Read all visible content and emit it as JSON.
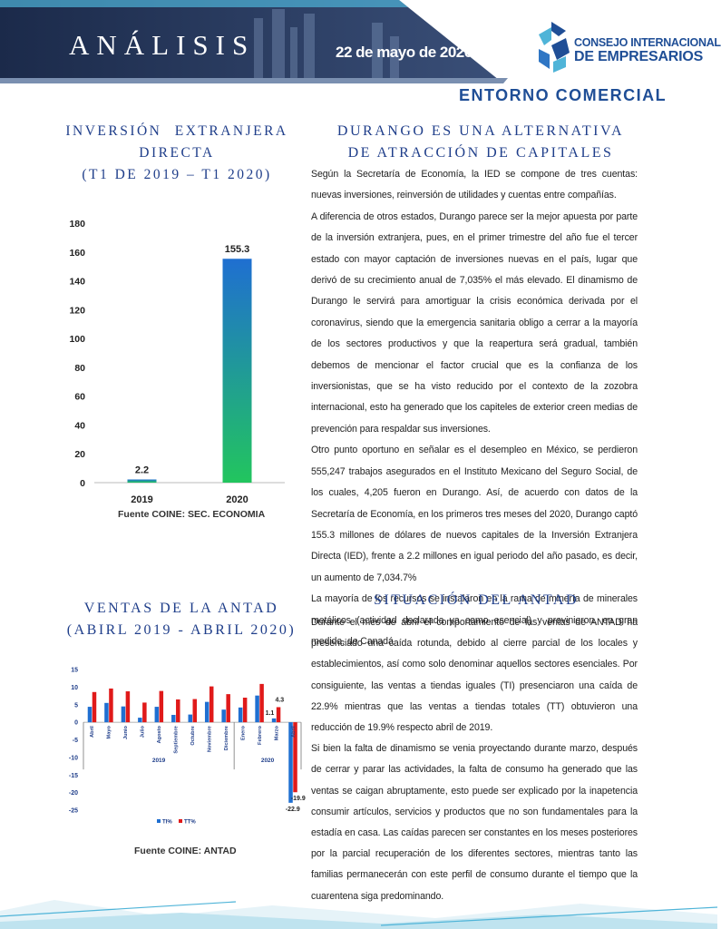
{
  "header": {
    "title": "ANÁLISIS",
    "date": "22 de mayo de 2020",
    "logo_line1": "CONSEJO INTERNACIONAL",
    "logo_line2": "DE EMPRESARIOS",
    "section": "ENTORNO COMERCIAL"
  },
  "left": {
    "ied_heading_1": "INVERSIÓN EXTRANJERA",
    "ied_heading_2": "DIRECTA",
    "ied_heading_3": "(T1 DE 2019 – T1 2020)",
    "ied_source": "Fuente COINE: SEC. ECONOMIA",
    "antad_heading_1": "VENTAS DE LA ANTAD",
    "antad_heading_2": "(ABIRL 2019 - ABRIL 2020)",
    "antad_source": "Fuente COINE: ANTAD"
  },
  "right": {
    "durango_heading_1": "DURANGO ES UNA ALTERNATIVA",
    "durango_heading_2": "DE ATRACCIÓN DE CAPITALES",
    "p1": "Según la Secretaría de Economía, la IED se compone de tres cuentas: nuevas inversiones, reinversión de utilidades y cuentas entre compañías.",
    "p2": "A diferencia de otros estados, Durango parece ser la mejor apuesta por parte de la inversión extranjera, pues, en el primer trimestre del año fue el tercer estado con mayor captación de inversiones nuevas en el país, lugar que derivó de su crecimiento anual de 7,035% el más elevado. El dinamismo de Durango le servirá para amortiguar la crisis económica derivada por el coronavirus, siendo que la emergencia sanitaria obligo a cerrar a la mayoría de los sectores productivos y que la reapertura será gradual, también debemos de mencionar el factor crucial que es la confianza de los inversionistas, que se ha visto reducido por el contexto de la  zozobra internacional, esto ha generado que los capiteles de exterior creen medias de prevención para respaldar sus inversiones.",
    "p3": "Otro punto oportuno en señalar es el desempleo en México, se perdieron 555,247 trabajos asegurados en el Instituto Mexicano del Seguro Social, de los cuales, 4,205 fueron en Durango. Así, de acuerdo con datos de la Secretaría de Economía, en los primeros tres meses del 2020, Durango captó 155.3 millones de dólares de nuevos capitales de la Inversión Extranjera Directa (IED), frente a 2.2 millones en igual periodo del año pasado, es decir, un aumento de 7,034.7%",
    "p4": "La mayoría de los recursos se instalaron en la rama de minería de minerales metálicos (actividad declarada ya como esencial) y provinieron, en gran medida, de Canadá.",
    "antad_heading": "SITUACIÓN DEL ANTAD",
    "p5": "Durante el mes de abril el comportamiento de las ventas de ANTAD ha presenciado una caída rotunda, debido al cierre parcial de los locales y establecimientos, así como solo denominar aquellos sectores esenciales.  Por consiguiente, las ventas a tiendas iguales (TI) presenciaron una caída de 22.9% mientras que las ventas a tiendas totales (TT) obtuvieron una reducción de 19.9% respecto abril de 2019.",
    "p6": "Si bien la falta de dinamismo se venia proyectando durante marzo, después de cerrar y parar las actividades, la falta de consumo ha generado que las ventas se caigan abruptamente, esto puede ser explicado por la inapetencia consumir artículos, servicios y productos que no son fundamentales para la estadía en casa. Las caídas parecen ser constantes en los meses posteriores por la parcial recuperación de los diferentes sectores, mientras tanto las familias permanecerán con este perfil de consumo durante el tiempo que la cuarentena siga predominando."
  },
  "chart_data": [
    {
      "type": "bar",
      "categories": [
        "2019",
        "2020"
      ],
      "values": [
        2.2,
        155.3
      ],
      "ylim": [
        0,
        180
      ],
      "yticks": [
        0,
        20,
        40,
        60,
        80,
        100,
        120,
        140,
        160,
        180
      ],
      "data_labels": [
        "2.2",
        "155.3"
      ],
      "grid": false,
      "colors": [
        "#1f6fd1",
        "#22c55e"
      ]
    },
    {
      "type": "bar",
      "categories": [
        "Abril",
        "Mayo",
        "Junio",
        "Julio",
        "Agosto",
        "Septiembre",
        "Octubre",
        "Noviembre",
        "Diciembre",
        "Enero",
        "Febrero",
        "Marzo",
        "Abril"
      ],
      "groups": [
        {
          "label": "2019",
          "span": [
            0,
            8
          ]
        },
        {
          "label": "2020",
          "span": [
            9,
            12
          ]
        }
      ],
      "series": [
        {
          "name": "TI%",
          "values": [
            4.4,
            5.5,
            4.5,
            1.3,
            4.4,
            2.1,
            2.2,
            5.8,
            3.6,
            4.2,
            7.6,
            1.1,
            -22.9
          ]
        },
        {
          "name": "TT%",
          "values": [
            8.6,
            9.6,
            8.8,
            5.6,
            8.9,
            6.5,
            6.6,
            10.2,
            8.0,
            7.0,
            10.9,
            4.3,
            -19.9
          ]
        }
      ],
      "data_labels": {
        "Marzo_TI": "1.1",
        "Marzo_TT": "4.3",
        "Abril2020_TI": "-22.9",
        "Abril2020_TT": "-19.9"
      },
      "ylim": [
        -25,
        15
      ],
      "yticks": [
        15,
        10,
        5,
        0,
        -5,
        -10,
        -15,
        -20,
        -25
      ],
      "legend": "bottom",
      "colors": {
        "TI%": "#1f6fd1",
        "TT%": "#e01a1a"
      }
    }
  ]
}
